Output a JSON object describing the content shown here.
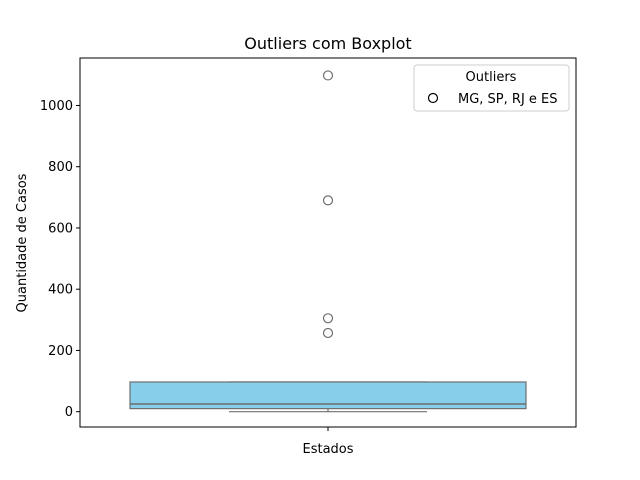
{
  "chart_data": {
    "type": "boxplot",
    "title": "Outliers com Boxplot",
    "xlabel": "Estados",
    "ylabel": "Quantidade de Casos",
    "ylim": [
      -50,
      1155
    ],
    "yticks": [
      0,
      200,
      400,
      600,
      800,
      1000
    ],
    "grid": false,
    "box": {
      "whisker_low": 0,
      "q1": 10,
      "median": 25,
      "q3": 97,
      "whisker_high": 97,
      "color": "#87CEEB",
      "edge_color": "#6e6e6e"
    },
    "outliers": [
      1098,
      690,
      305,
      257
    ],
    "legend": {
      "title": "Outliers",
      "label": "MG, SP, RJ e ES",
      "position": "upper right"
    }
  }
}
